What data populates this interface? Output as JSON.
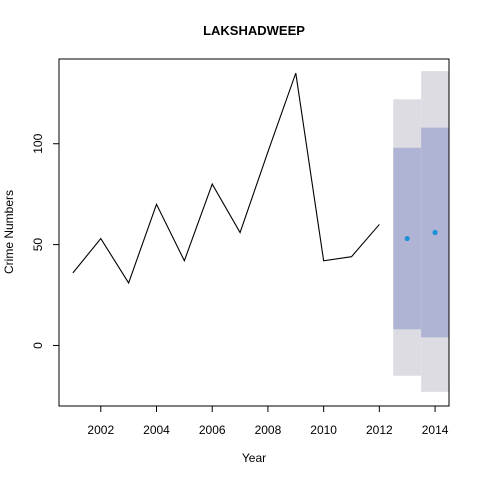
{
  "chart_data": {
    "type": "line",
    "title": "LAKSHADWEEP",
    "xlabel": "Year",
    "ylabel": "Crime Numbers",
    "xlim": [
      2000.5,
      2014.5
    ],
    "ylim": [
      -30,
      142
    ],
    "x_ticks": [
      2002,
      2004,
      2006,
      2008,
      2010,
      2012,
      2014
    ],
    "y_ticks": [
      0,
      50,
      100
    ],
    "grid": false,
    "series": [
      {
        "x": [
          2001,
          2002,
          2003,
          2004,
          2005,
          2006,
          2007,
          2008,
          2009,
          2010,
          2011,
          2012
        ],
        "values": [
          36,
          53,
          31,
          70,
          42,
          80,
          56,
          96,
          135,
          42,
          44,
          60
        ],
        "color": "#000000"
      }
    ],
    "forecast": {
      "x": [
        2013,
        2014
      ],
      "mean": [
        53,
        56
      ],
      "lower_80": [
        8,
        4
      ],
      "upper_80": [
        98,
        108
      ],
      "lower_95": [
        -15,
        -23
      ],
      "upper_95": [
        122,
        136
      ],
      "point_color": "#1e90d8",
      "band_80_color": "#b0b4d4",
      "band_95_color": "#dcdce2"
    }
  }
}
